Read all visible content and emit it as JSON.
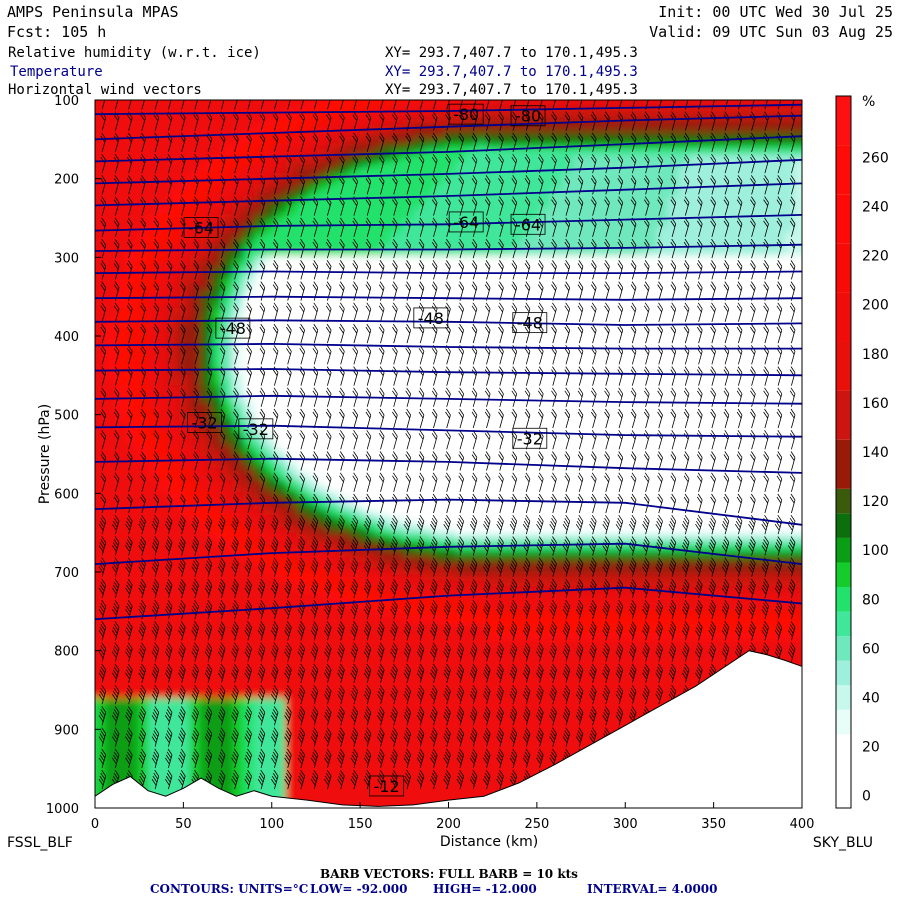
{
  "header": {
    "model": "AMPS Peninsula MPAS",
    "forecast": "Fcst:  105 h",
    "init": "Init: 00 UTC Wed 30 Jul 25",
    "valid": "Valid: 09 UTC Sun 03 Aug 25"
  },
  "fields": [
    {
      "label": "Relative humidity (w.r.t. ice)",
      "xy": "XY= 293.7,407.7 to 170.1,495.3",
      "color": "#000000"
    },
    {
      "label": "Temperature",
      "xy": "XY= 293.7,407.7 to 170.1,495.3",
      "color": "#00008b"
    },
    {
      "label": "Horizontal wind vectors",
      "xy": "XY= 293.7,407.7 to 170.1,495.3",
      "color": "#000000"
    }
  ],
  "chart_data": {
    "type": "heatmap",
    "xlabel": "Distance (km)",
    "ylabel": "Pressure (hPa)",
    "xlim": [
      0,
      400
    ],
    "ylim": [
      1000,
      100
    ],
    "xticks": [
      0,
      50,
      100,
      150,
      200,
      250,
      300,
      350,
      400
    ],
    "yticks": [
      100,
      200,
      300,
      400,
      500,
      600,
      700,
      800,
      900,
      1000
    ],
    "x_axis_left_label": "FSSL_BLF",
    "x_axis_right_label": "SKY_BLU",
    "colorbar": {
      "unit": "%",
      "labels": [
        0,
        20,
        40,
        60,
        80,
        100,
        120,
        140,
        160,
        180,
        200,
        220,
        240,
        260
      ],
      "bands": [
        {
          "from": -10,
          "to": 20,
          "color": "#ffffff"
        },
        {
          "from": 20,
          "to": 30,
          "color": "#e8fcf8"
        },
        {
          "from": 30,
          "to": 40,
          "color": "#c8f8ec"
        },
        {
          "from": 40,
          "to": 50,
          "color": "#9ef0dc"
        },
        {
          "from": 50,
          "to": 60,
          "color": "#6ee8bc"
        },
        {
          "from": 60,
          "to": 70,
          "color": "#40e79a"
        },
        {
          "from": 70,
          "to": 80,
          "color": "#22e26c"
        },
        {
          "from": 80,
          "to": 90,
          "color": "#14cc2c"
        },
        {
          "from": 90,
          "to": 100,
          "color": "#0a9e14"
        },
        {
          "from": 100,
          "to": 110,
          "color": "#0d6e0d"
        },
        {
          "from": 110,
          "to": 120,
          "color": "#3c5a0c"
        },
        {
          "from": 120,
          "to": 140,
          "color": "#9a1a0a"
        },
        {
          "from": 140,
          "to": 160,
          "color": "#cc1410"
        },
        {
          "from": 160,
          "to": 180,
          "color": "#e81008"
        },
        {
          "from": 180,
          "to": 200,
          "color": "#f00c08"
        },
        {
          "from": 200,
          "to": 220,
          "color": "#f80a06"
        },
        {
          "from": 220,
          "to": 240,
          "color": "#ff0a06"
        },
        {
          "from": 240,
          "to": 260,
          "color": "#ff0c08"
        },
        {
          "from": 260,
          "to": 280,
          "color": "#ff1010"
        }
      ]
    },
    "temperature_contour_labels": [
      {
        "text": "-80",
        "x": 210,
        "p": 118
      },
      {
        "text": "-80",
        "x": 245,
        "p": 120
      },
      {
        "text": "-64",
        "x": 60,
        "p": 262
      },
      {
        "text": "-64",
        "x": 210,
        "p": 255
      },
      {
        "text": "-64",
        "x": 245,
        "p": 258
      },
      {
        "text": "-48",
        "x": 78,
        "p": 390
      },
      {
        "text": "-48",
        "x": 190,
        "p": 377
      },
      {
        "text": "-48",
        "x": 246,
        "p": 383
      },
      {
        "text": "-32",
        "x": 62,
        "p": 510
      },
      {
        "text": "-32",
        "x": 91,
        "p": 518
      },
      {
        "text": "-32",
        "x": 246,
        "p": 530
      },
      {
        "text": "-12",
        "x": 165,
        "p": 972
      }
    ],
    "temperature_isotherms": [
      {
        "t": -84,
        "x": [
          0,
          100,
          200,
          300,
          400
        ],
        "p": [
          118,
          116,
          114,
          110,
          106
        ]
      },
      {
        "t": -80,
        "x": [
          0,
          100,
          200,
          300,
          400
        ],
        "p": [
          150,
          142,
          134,
          126,
          120
        ]
      },
      {
        "t": -76,
        "x": [
          0,
          100,
          200,
          300,
          400
        ],
        "p": [
          178,
          172,
          166,
          156,
          146
        ]
      },
      {
        "t": -72,
        "x": [
          0,
          100,
          200,
          300,
          400
        ],
        "p": [
          206,
          200,
          194,
          186,
          176
        ]
      },
      {
        "t": -68,
        "x": [
          0,
          100,
          200,
          300,
          400
        ],
        "p": [
          234,
          228,
          222,
          214,
          206
        ]
      },
      {
        "t": -64,
        "x": [
          0,
          100,
          200,
          300,
          400
        ],
        "p": [
          266,
          260,
          258,
          252,
          246
        ]
      },
      {
        "t": -60,
        "x": [
          0,
          100,
          200,
          300,
          400
        ],
        "p": [
          292,
          290,
          290,
          288,
          284
        ]
      },
      {
        "t": -56,
        "x": [
          0,
          100,
          200,
          300,
          400
        ],
        "p": [
          320,
          318,
          320,
          320,
          318
        ]
      },
      {
        "t": -52,
        "x": [
          0,
          100,
          200,
          300,
          400
        ],
        "p": [
          352,
          350,
          352,
          354,
          352
        ]
      },
      {
        "t": -48,
        "x": [
          0,
          100,
          200,
          300,
          400
        ],
        "p": [
          382,
          380,
          382,
          386,
          384
        ]
      },
      {
        "t": -44,
        "x": [
          0,
          100,
          200,
          300,
          400
        ],
        "p": [
          412,
          410,
          414,
          416,
          416
        ]
      },
      {
        "t": -40,
        "x": [
          0,
          100,
          200,
          300,
          400
        ],
        "p": [
          444,
          442,
          446,
          448,
          450
        ]
      },
      {
        "t": -36,
        "x": [
          0,
          100,
          200,
          300,
          400
        ],
        "p": [
          480,
          476,
          480,
          484,
          486
        ]
      },
      {
        "t": -32,
        "x": [
          0,
          100,
          200,
          300,
          400
        ],
        "p": [
          516,
          514,
          520,
          526,
          528
        ]
      },
      {
        "t": -28,
        "x": [
          0,
          100,
          200,
          300,
          400
        ],
        "p": [
          560,
          556,
          560,
          568,
          574
        ]
      },
      {
        "t": -24,
        "x": [
          0,
          100,
          200,
          300,
          400
        ],
        "p": [
          620,
          612,
          608,
          612,
          640
        ]
      },
      {
        "t": -20,
        "x": [
          0,
          100,
          200,
          300,
          400
        ],
        "p": [
          690,
          676,
          668,
          664,
          690
        ]
      },
      {
        "t": -16,
        "x": [
          0,
          100,
          200,
          300,
          400
        ],
        "p": [
          760,
          746,
          730,
          720,
          740
        ]
      }
    ],
    "terrain_surface": {
      "x": [
        0,
        10,
        20,
        30,
        40,
        50,
        60,
        70,
        80,
        90,
        100,
        120,
        140,
        160,
        180,
        200,
        220,
        240,
        260,
        280,
        300,
        320,
        340,
        360,
        370,
        380,
        390,
        400
      ],
      "p": [
        985,
        970,
        960,
        978,
        985,
        975,
        962,
        975,
        985,
        978,
        985,
        990,
        996,
        998,
        996,
        990,
        985,
        968,
        945,
        920,
        895,
        870,
        845,
        815,
        800,
        805,
        812,
        820
      ]
    },
    "barbs_label": "BARB VECTORS:  FULL BARB = 10 kts",
    "contours": {
      "units": "CONTOURS:  UNITS=°C",
      "low": "LOW= -92.000",
      "high": "HIGH= -12.000",
      "interval": "INTERVAL=   4.0000"
    }
  }
}
